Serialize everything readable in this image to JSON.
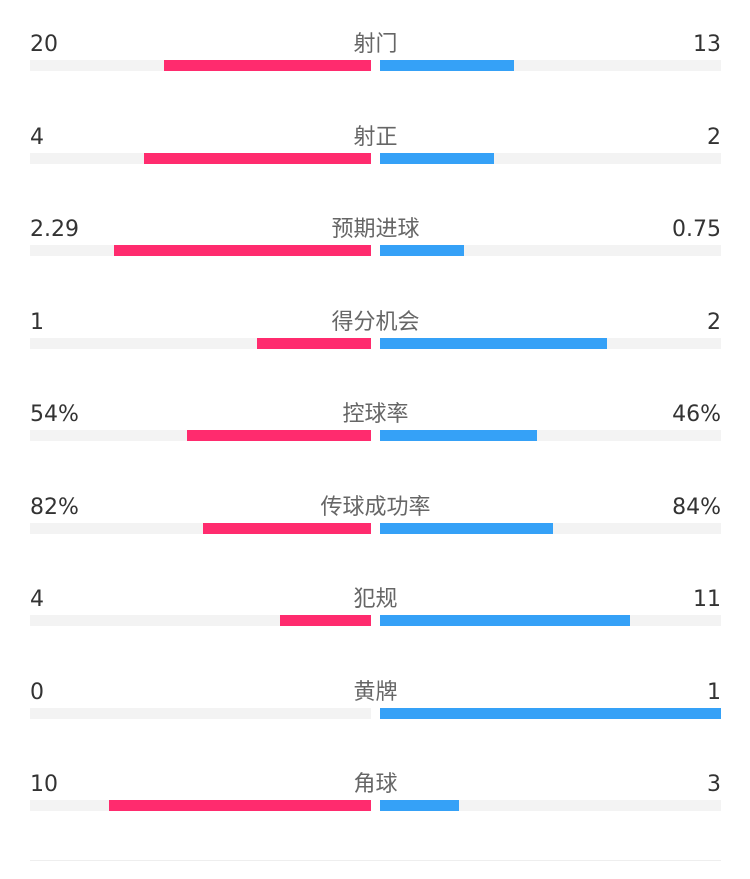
{
  "colors": {
    "home": "#ff2b6e",
    "away": "#35a1f7"
  },
  "chart_data": {
    "type": "bar",
    "categories": [
      "射门",
      "射正",
      "预期进球",
      "得分机会",
      "控球率",
      "传球成功率",
      "犯规",
      "黄牌",
      "角球"
    ],
    "series": [
      {
        "name": "home",
        "labels": [
          "20",
          "4",
          "2.29",
          "1",
          "54%",
          "82%",
          "4",
          "0",
          "10"
        ],
        "values": [
          20,
          4,
          2.29,
          1,
          54,
          82,
          4,
          0,
          10
        ]
      },
      {
        "name": "away",
        "labels": [
          "13",
          "2",
          "0.75",
          "2",
          "46%",
          "84%",
          "11",
          "1",
          "3"
        ],
        "values": [
          13,
          2,
          0.75,
          2,
          46,
          84,
          11,
          1,
          3
        ]
      }
    ]
  }
}
